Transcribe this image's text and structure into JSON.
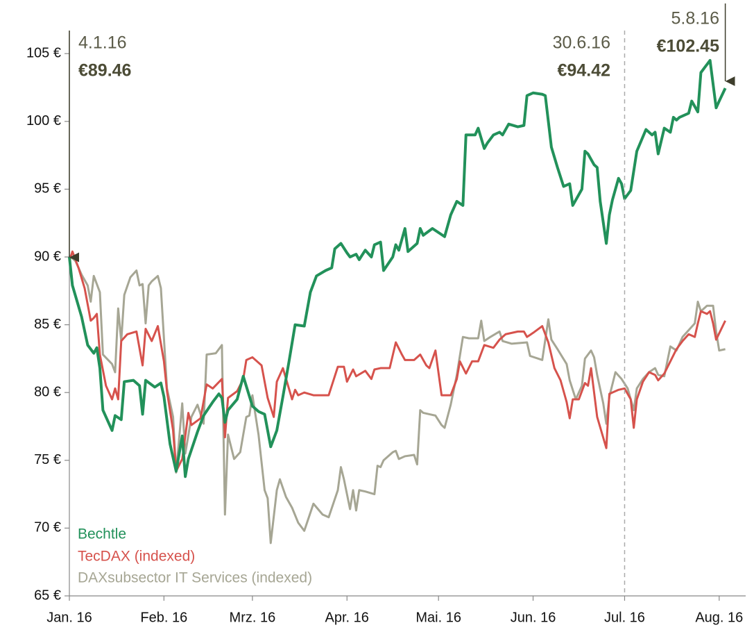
{
  "chart_data": {
    "type": "line",
    "xlim": [
      0,
      221
    ],
    "xticks": [
      {
        "value": 0,
        "label": "Jan. 16"
      },
      {
        "value": 31,
        "label": "Feb. 16"
      },
      {
        "value": 60,
        "label": "Mrz. 16"
      },
      {
        "value": 91,
        "label": "Apr. 16"
      },
      {
        "value": 121,
        "label": "Mai. 16"
      },
      {
        "value": 152,
        "label": "Jun. 16"
      },
      {
        "value": 182,
        "label": "Jul. 16"
      },
      {
        "value": 213,
        "label": "Aug. 16"
      }
    ],
    "ylim": [
      65,
      106.7
    ],
    "yticks": [
      {
        "value": 65,
        "label": "65 €"
      },
      {
        "value": 70,
        "label": "70 €"
      },
      {
        "value": 75,
        "label": "75 €"
      },
      {
        "value": 80,
        "label": "80 €"
      },
      {
        "value": 85,
        "label": "85 €"
      },
      {
        "value": 90,
        "label": "90 €"
      },
      {
        "value": 95,
        "label": "95 €"
      },
      {
        "value": 100,
        "label": "100 €"
      },
      {
        "value": 105,
        "label": "105 €"
      }
    ],
    "grid": false,
    "legend": "bottom-left",
    "series": [
      {
        "name": "Bechtle",
        "color": "#22915a",
        "x": [
          0,
          1,
          4,
          6,
          8,
          9,
          10,
          11,
          14,
          15,
          17,
          18,
          21,
          23,
          24,
          25,
          28,
          30,
          31,
          33,
          35,
          37,
          38,
          39,
          42,
          44,
          47,
          49,
          50,
          51,
          52,
          55,
          57,
          60,
          62,
          64,
          66,
          68,
          70,
          72,
          74,
          77,
          79,
          81,
          84,
          86,
          87,
          89,
          91,
          92,
          94,
          95,
          97,
          99,
          100,
          102,
          103,
          106,
          107,
          108,
          110,
          111,
          114,
          115,
          116,
          119,
          123,
          125,
          127,
          129,
          130,
          133,
          134,
          136,
          137,
          139,
          141,
          142,
          144,
          147,
          149,
          150,
          152,
          155,
          156,
          157,
          158,
          160,
          162,
          164,
          165,
          168,
          169,
          170,
          172,
          173,
          174,
          176,
          177,
          178,
          180,
          181,
          182,
          184,
          186,
          189,
          191,
          192,
          193,
          195,
          197,
          198,
          199,
          200,
          203,
          204,
          206,
          207,
          210,
          212,
          213,
          215
        ],
        "values": [
          90.0,
          87.9,
          85.6,
          83.5,
          82.9,
          83.3,
          81.8,
          78.7,
          77.2,
          78.3,
          78.0,
          80.8,
          80.9,
          80.5,
          78.4,
          80.9,
          80.4,
          80.7,
          79.7,
          76.2,
          74.2,
          76.8,
          73.8,
          75.1,
          77.1,
          78.3,
          79.3,
          79.9,
          79.6,
          77.8,
          78.7,
          79.5,
          81.2,
          79.0,
          78.6,
          78.4,
          76.0,
          77.2,
          79.7,
          82.3,
          85.0,
          84.9,
          87.4,
          88.6,
          89.0,
          89.2,
          90.6,
          91.0,
          90.3,
          90.0,
          90.2,
          89.8,
          90.5,
          90.0,
          90.9,
          91.1,
          89.0,
          90.0,
          90.9,
          90.5,
          92.1,
          90.4,
          91.0,
          92.1,
          91.6,
          92.1,
          91.5,
          93.1,
          94.1,
          93.8,
          99.0,
          99.0,
          99.5,
          98.0,
          98.4,
          99.0,
          99.2,
          99.0,
          99.8,
          99.6,
          99.7,
          101.9,
          102.1,
          102.0,
          101.9,
          100.0,
          98.1,
          96.6,
          95.2,
          95.4,
          93.8,
          95.0,
          97.8,
          97.6,
          96.8,
          96.6,
          94.1,
          91.0,
          93.1,
          94.2,
          95.8,
          95.4,
          94.3,
          94.9,
          97.8,
          99.4,
          99.0,
          99.2,
          97.6,
          99.5,
          99.2,
          100.3,
          100.1,
          100.3,
          100.6,
          101.5,
          100.7,
          103.6,
          104.5,
          101.0,
          101.5,
          102.45
        ]
      },
      {
        "name": "TecDAX (indexed)",
        "color": "#d6524c",
        "x": [
          0,
          1,
          3,
          5,
          7,
          8,
          9,
          10,
          12,
          14,
          15,
          16,
          17,
          19,
          22,
          24,
          25,
          27,
          29,
          31,
          32,
          34,
          35,
          37,
          39,
          40,
          43,
          45,
          47,
          50,
          51,
          52,
          55,
          57,
          58,
          60,
          63,
          65,
          67,
          68,
          70,
          73,
          74,
          75,
          77,
          80,
          82,
          85,
          88,
          90,
          91,
          93,
          94,
          97,
          99,
          100,
          102,
          105,
          107,
          109,
          110,
          113,
          115,
          117,
          118,
          120,
          122,
          125,
          127,
          128,
          130,
          132,
          134,
          136,
          139,
          141,
          143,
          147,
          149,
          150,
          152,
          155,
          157,
          159,
          161,
          163,
          164,
          165,
          167,
          169,
          170,
          171,
          173,
          176,
          177,
          180,
          182,
          184,
          185,
          186,
          188,
          190,
          192,
          193,
          195,
          197,
          199,
          201,
          203,
          205,
          206,
          207,
          209,
          210,
          211,
          212,
          215
        ],
        "values": [
          89.7,
          90.4,
          89.2,
          87.7,
          85.3,
          85.5,
          85.8,
          82.8,
          80.5,
          79.5,
          80.3,
          79.5,
          83.8,
          84.3,
          84.5,
          82.0,
          84.7,
          83.8,
          84.9,
          82.3,
          80.1,
          77.2,
          74.2,
          75.1,
          78.5,
          77.6,
          78.1,
          80.6,
          80.3,
          81.0,
          76.7,
          79.6,
          80.1,
          81.0,
          82.4,
          82.6,
          82.0,
          79.6,
          78.2,
          80.8,
          81.8,
          79.5,
          80.2,
          79.8,
          80.0,
          79.8,
          79.8,
          79.8,
          81.9,
          81.9,
          80.8,
          81.7,
          81.2,
          81.6,
          81.0,
          81.7,
          81.8,
          81.8,
          83.7,
          82.8,
          82.4,
          82.4,
          82.8,
          82.0,
          81.8,
          83.1,
          79.8,
          79.8,
          81.0,
          82.3,
          81.4,
          82.3,
          82.3,
          83.5,
          83.3,
          83.9,
          84.3,
          84.5,
          84.5,
          84.1,
          84.4,
          84.9,
          83.7,
          81.8,
          80.9,
          79.3,
          78.1,
          79.5,
          79.5,
          80.7,
          80.5,
          81.8,
          78.2,
          75.9,
          79.9,
          80.2,
          80.3,
          79.5,
          77.4,
          79.5,
          80.8,
          81.5,
          81.3,
          80.9,
          81.4,
          82.3,
          83.2,
          83.8,
          84.3,
          84.1,
          85.1,
          86.0,
          85.8,
          86.0,
          85.1,
          83.9,
          85.3
        ]
      },
      {
        "name": "DAXsubsector IT Services (indexed)",
        "color": "#a6a694",
        "x": [
          0,
          2,
          4,
          6,
          7,
          8,
          10,
          11,
          14,
          15,
          16,
          17,
          18,
          20,
          22,
          23,
          24,
          25,
          26,
          27,
          29,
          30,
          32,
          34,
          35,
          37,
          38,
          40,
          42,
          44,
          45,
          48,
          50,
          51,
          52,
          54,
          56,
          58,
          59,
          60,
          62,
          64,
          65,
          66,
          68,
          69,
          71,
          73,
          75,
          77,
          80,
          83,
          85,
          88,
          89,
          90,
          92,
          93,
          94,
          95,
          97,
          100,
          101,
          102,
          103,
          106,
          107,
          108,
          110,
          113,
          114,
          115,
          116,
          118,
          120,
          122,
          123,
          125,
          127,
          129,
          131,
          134,
          135,
          136,
          138,
          141,
          142,
          145,
          150,
          151,
          155,
          157,
          158,
          160,
          163,
          164,
          166,
          168,
          169,
          171,
          172,
          173,
          175,
          176,
          177,
          179,
          181,
          183,
          185,
          186,
          188,
          190,
          192,
          193,
          195,
          197,
          199,
          201,
          205,
          206,
          207,
          209,
          211,
          212,
          213,
          215
        ],
        "values": [
          90.1,
          89.7,
          88.7,
          87.9,
          86.7,
          88.6,
          87.4,
          82.8,
          82.1,
          81.5,
          86.2,
          83.8,
          87.2,
          88.5,
          89.0,
          87.9,
          88.0,
          85.1,
          87.9,
          88.2,
          88.6,
          87.7,
          80.3,
          78.2,
          74.1,
          79.2,
          75.5,
          78.2,
          79.1,
          77.7,
          82.8,
          82.9,
          83.5,
          71.0,
          76.9,
          75.1,
          75.6,
          78.2,
          78.3,
          79.8,
          76.9,
          72.8,
          72.2,
          68.9,
          72.8,
          73.6,
          72.3,
          71.5,
          70.4,
          69.8,
          71.8,
          71.0,
          70.8,
          72.8,
          74.5,
          73.6,
          71.4,
          72.8,
          71.3,
          72.8,
          72.7,
          72.5,
          74.6,
          74.5,
          75.0,
          75.6,
          75.7,
          75.1,
          75.3,
          75.4,
          74.7,
          78.7,
          78.5,
          78.4,
          78.3,
          77.6,
          77.4,
          79.1,
          81.3,
          84.1,
          84.0,
          84.0,
          85.3,
          83.8,
          84.1,
          84.5,
          83.8,
          83.6,
          83.7,
          82.7,
          82.4,
          85.4,
          83.9,
          83.2,
          82.1,
          80.9,
          79.5,
          80.5,
          82.5,
          83.1,
          82.6,
          81.3,
          79.2,
          77.7,
          79.7,
          81.5,
          81.0,
          80.3,
          78.7,
          80.3,
          81.0,
          81.5,
          81.8,
          81.3,
          81.2,
          83.4,
          83.1,
          84.1,
          85.1,
          86.7,
          86.0,
          86.4,
          86.4,
          84.5,
          83.1,
          83.2
        ]
      }
    ],
    "annotations": [
      {
        "date": "4.1.16",
        "x": 0,
        "value": 89.46,
        "value_label": "€89.46"
      },
      {
        "date": "30.6.16",
        "x": 182,
        "value": 94.42,
        "value_label": "€94.42"
      },
      {
        "date": "5.8.16",
        "x": 215,
        "value": 102.45,
        "value_label": "€102.45"
      }
    ]
  }
}
